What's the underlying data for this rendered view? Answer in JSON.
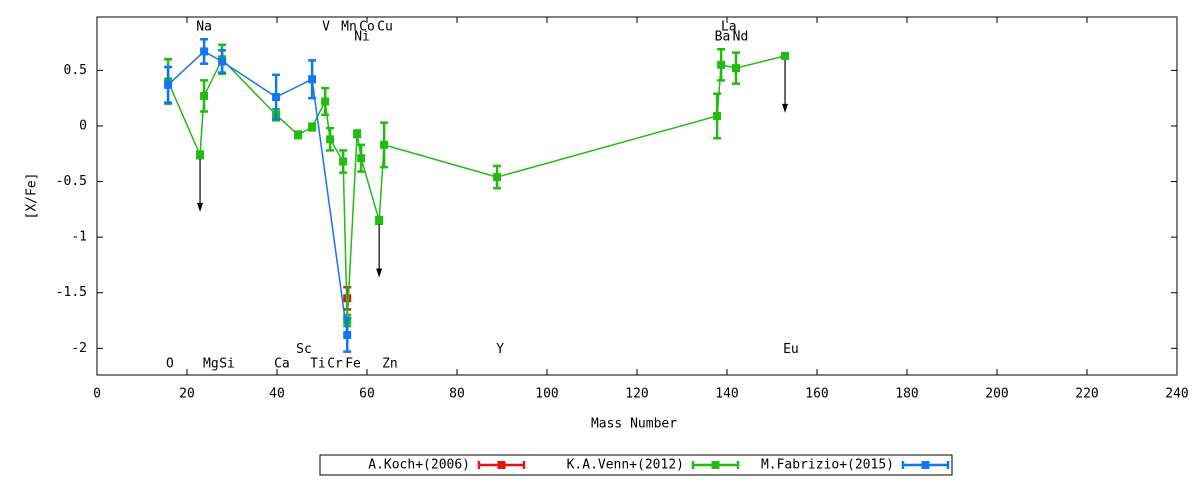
{
  "chart_data": {
    "type": "errorbar",
    "xlabel": "Mass Number",
    "ylabel": "[X/Fe]",
    "xlim": [
      0,
      240
    ],
    "xticks": [
      0,
      20,
      40,
      60,
      80,
      100,
      120,
      140,
      160,
      180,
      200,
      220,
      240
    ],
    "ylim": [
      -2.24,
      0.98
    ],
    "yticks": [
      0.5,
      0,
      -0.5,
      -1,
      -1.5,
      -2
    ],
    "grid": false,
    "legend": "bottom",
    "series": [
      {
        "name": "A.Koch+(2006)",
        "color": "#ee1111",
        "x": [
          55.6
        ],
        "values": [
          -1.55
        ],
        "errors": [
          0.1
        ],
        "upper_limits": [
          false
        ]
      },
      {
        "name": "K.A.Venn+(2012)",
        "color": "#22bb11",
        "x": [
          15.8,
          22.9,
          23.8,
          27.8,
          39.8,
          44.7,
          47.8,
          50.7,
          51.8,
          54.7,
          55.6,
          57.8,
          58.7,
          62.7,
          63.8,
          88.9,
          137.8,
          138.7,
          142,
          152.9
        ],
        "values": [
          0.4,
          -0.26,
          0.27,
          0.6,
          0.1,
          -0.08,
          -0.01,
          0.22,
          -0.12,
          -0.32,
          -1.75,
          -0.07,
          -0.29,
          -0.85,
          -0.17,
          -0.46,
          0.09,
          0.55,
          0.52,
          0.63
        ],
        "errors": [
          0.2,
          0.03,
          0.14,
          0.13,
          0.05,
          0.03,
          0.03,
          0.12,
          0.1,
          0.1,
          0.05,
          0.03,
          0.12,
          0.03,
          0.2,
          0.1,
          0.2,
          0.14,
          0.14,
          0.02
        ],
        "upper_limits": [
          false,
          true,
          false,
          false,
          false,
          false,
          false,
          false,
          false,
          false,
          false,
          false,
          false,
          true,
          false,
          false,
          false,
          false,
          false,
          true
        ]
      },
      {
        "name": "M.Fabrizio+(2015)",
        "color": "#1177ee",
        "x": [
          15.8,
          23.8,
          27.8,
          39.8,
          47.8,
          55.6
        ],
        "values": [
          0.37,
          0.67,
          0.58,
          0.26,
          0.42,
          -1.88
        ],
        "errors": [
          0.16,
          0.11,
          0.1,
          0.2,
          0.17,
          0.15
        ],
        "upper_limits": [
          false,
          false,
          false,
          false,
          false,
          false
        ]
      }
    ],
    "annotations": [
      {
        "text": "Na",
        "x": 23.8,
        "y": 0.89
      },
      {
        "text": "V",
        "x": 50.9,
        "y": 0.89
      },
      {
        "text": "Mn",
        "x": 56,
        "y": 0.89
      },
      {
        "text": "Co",
        "x": 60,
        "y": 0.89
      },
      {
        "text": "Cu",
        "x": 64,
        "y": 0.89
      },
      {
        "text": "Ni",
        "x": 58.9,
        "y": 0.8
      },
      {
        "text": "La",
        "x": 140.4,
        "y": 0.89
      },
      {
        "text": "Ba",
        "x": 139,
        "y": 0.8
      },
      {
        "text": "Nd",
        "x": 143,
        "y": 0.8
      },
      {
        "text": "O",
        "x": 16.2,
        "y": -2.14
      },
      {
        "text": "Mg",
        "x": 25.3,
        "y": -2.14
      },
      {
        "text": "Si",
        "x": 28.9,
        "y": -2.14
      },
      {
        "text": "Ca",
        "x": 41.1,
        "y": -2.14
      },
      {
        "text": "Sc",
        "x": 46,
        "y": -2.01
      },
      {
        "text": "Ti",
        "x": 49.1,
        "y": -2.14
      },
      {
        "text": "Cr",
        "x": 52.9,
        "y": -2.14
      },
      {
        "text": "Fe",
        "x": 56.9,
        "y": -2.14
      },
      {
        "text": "Zn",
        "x": 65.1,
        "y": -2.14
      },
      {
        "text": "Y",
        "x": 89.6,
        "y": -2.01
      },
      {
        "text": "Eu",
        "x": 154.2,
        "y": -2.01
      }
    ]
  }
}
